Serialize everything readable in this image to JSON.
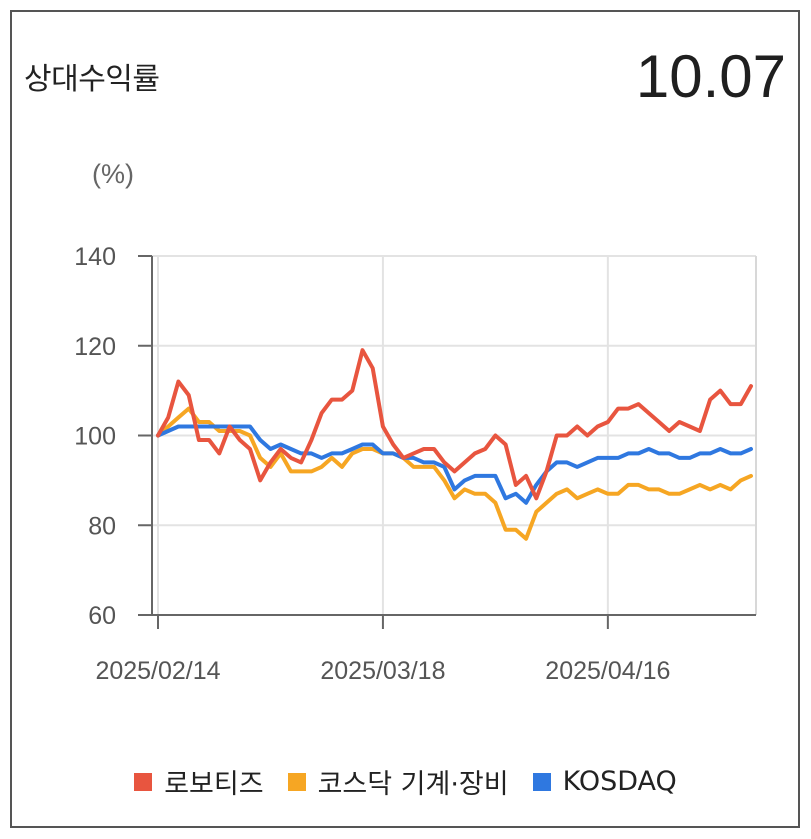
{
  "header": {
    "title": "상대수익률",
    "value": "10.07"
  },
  "chart_data": {
    "type": "line",
    "unit_label": "(%)",
    "ylim": [
      60,
      140
    ],
    "y_ticks": [
      140,
      120,
      100,
      80,
      60
    ],
    "x_tick_labels": [
      "2025/02/14",
      "2025/03/18",
      "2025/04/16"
    ],
    "x_tick_index": [
      0,
      22,
      44
    ],
    "grid": true,
    "legend_position": "bottom",
    "series": [
      {
        "name": "로보티즈",
        "color": "#e8553f",
        "values": [
          100,
          104,
          112,
          109,
          99,
          99,
          96,
          102,
          99,
          97,
          90,
          94,
          97,
          95,
          94,
          99,
          105,
          108,
          108,
          110,
          119,
          115,
          102,
          98,
          95,
          96,
          97,
          97,
          94,
          92,
          94,
          96,
          97,
          100,
          98,
          89,
          91,
          86,
          92,
          100,
          100,
          102,
          100,
          102,
          103,
          106,
          106,
          107,
          105,
          103,
          101,
          103,
          102,
          101,
          108,
          110,
          107,
          107,
          111
        ]
      },
      {
        "name": "코스닥 기계·장비",
        "color": "#f6a623",
        "values": [
          100,
          102,
          104,
          106,
          103,
          103,
          101,
          101,
          101,
          100,
          95,
          93,
          96,
          92,
          92,
          92,
          93,
          95,
          93,
          96,
          97,
          97,
          96,
          96,
          95,
          93,
          93,
          93,
          90,
          86,
          88,
          87,
          87,
          85,
          79,
          79,
          77,
          83,
          85,
          87,
          88,
          86,
          87,
          88,
          87,
          87,
          89,
          89,
          88,
          88,
          87,
          87,
          88,
          89,
          88,
          89,
          88,
          90,
          91
        ]
      },
      {
        "name": "KOSDAQ",
        "color": "#2f78e0",
        "values": [
          100,
          101,
          102,
          102,
          102,
          102,
          102,
          102,
          102,
          102,
          99,
          97,
          98,
          97,
          96,
          96,
          95,
          96,
          96,
          97,
          98,
          98,
          96,
          96,
          95,
          95,
          94,
          94,
          93,
          88,
          90,
          91,
          91,
          91,
          86,
          87,
          85,
          89,
          92,
          94,
          94,
          93,
          94,
          95,
          95,
          95,
          96,
          96,
          97,
          96,
          96,
          95,
          95,
          96,
          96,
          97,
          96,
          96,
          97
        ]
      }
    ]
  }
}
